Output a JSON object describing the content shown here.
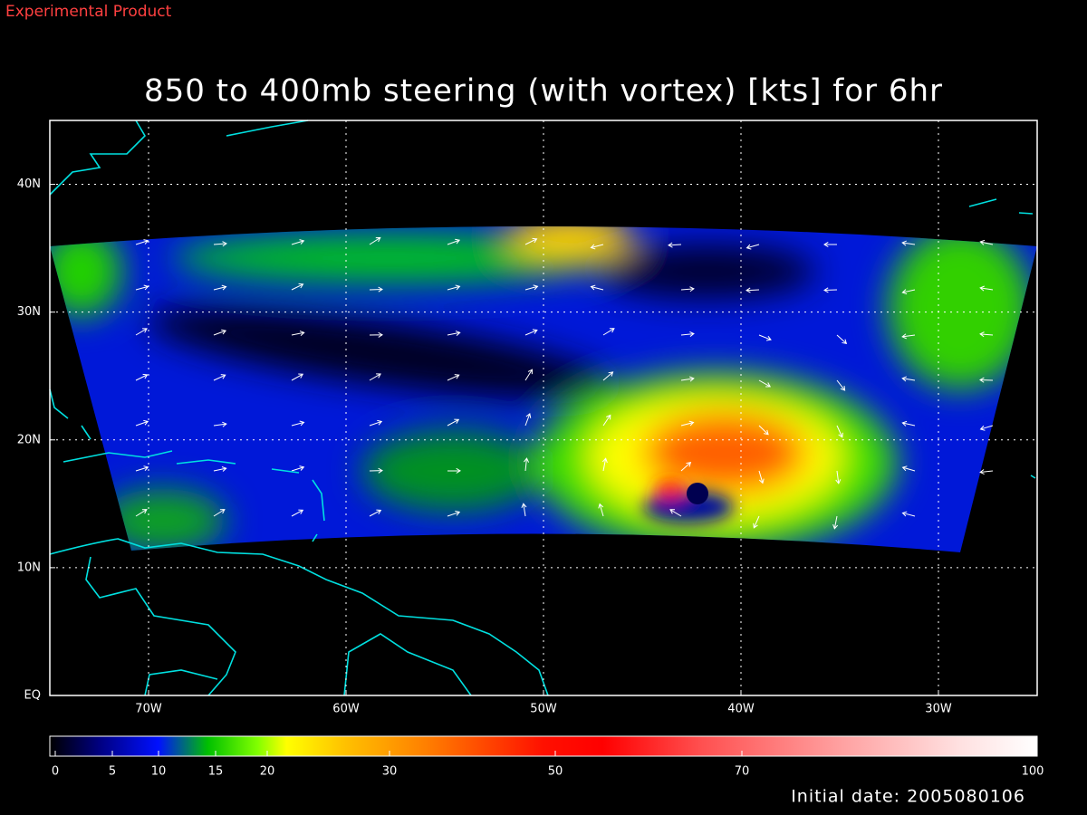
{
  "header": {
    "label": "Experimental Product"
  },
  "map": {
    "title": "850 to 400mb steering (with vortex) [kts] for 6hr",
    "lonlim": [
      -75,
      -25
    ],
    "latlim": [
      0,
      45
    ],
    "lonticks": [
      {
        "value": -70,
        "label": "70W"
      },
      {
        "value": -60,
        "label": "60W"
      },
      {
        "value": -50,
        "label": "50W"
      },
      {
        "value": -40,
        "label": "40W"
      },
      {
        "value": -30,
        "label": "30W"
      }
    ],
    "latticks": [
      {
        "value": 0,
        "label": "EQ"
      },
      {
        "value": 10,
        "label": "10N"
      },
      {
        "value": 20,
        "label": "20N"
      },
      {
        "value": 30,
        "label": "30N"
      },
      {
        "value": 40,
        "label": "40N"
      }
    ],
    "grid": true
  },
  "colorbar": {
    "lim": [
      0,
      100
    ],
    "ticks": [
      0,
      5,
      10,
      15,
      20,
      30,
      50,
      70,
      100
    ]
  },
  "footer": {
    "initial_date": "Initial date: 2005080106"
  }
}
